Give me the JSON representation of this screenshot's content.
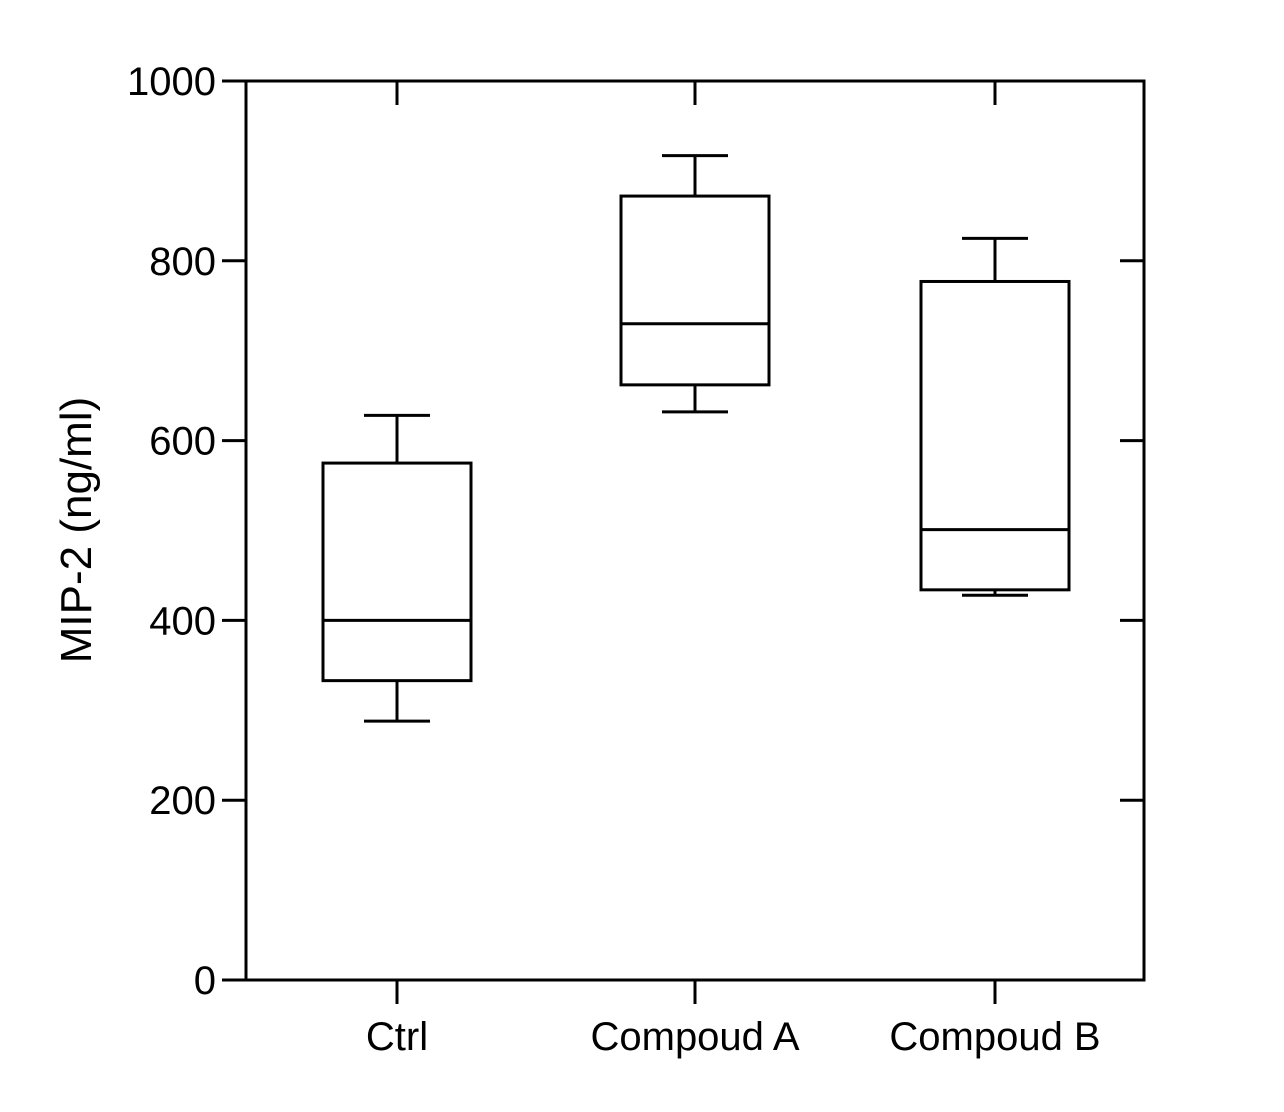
{
  "chart_data": {
    "type": "box",
    "title": "",
    "xlabel": "",
    "ylabel": "MIP-2 (ng/ml)",
    "ylim": [
      0,
      1000
    ],
    "yticks": [
      0,
      200,
      400,
      600,
      800,
      1000
    ],
    "ytick_labels": [
      "0",
      "200",
      "400",
      "600",
      "800",
      "1000"
    ],
    "categories": [
      "Ctrl",
      "Compoud A",
      "Compoud B"
    ],
    "boxes": [
      {
        "name": "Ctrl",
        "min": 288,
        "q1": 333,
        "median": 400,
        "q3": 575,
        "max": 628
      },
      {
        "name": "Compoud A",
        "min": 632,
        "q1": 662,
        "median": 730,
        "q3": 872,
        "max": 917
      },
      {
        "name": "Compoud B",
        "min": 428,
        "q1": 434,
        "median": 501,
        "q3": 777,
        "max": 825
      }
    ],
    "grid": false,
    "legend": "none"
  }
}
